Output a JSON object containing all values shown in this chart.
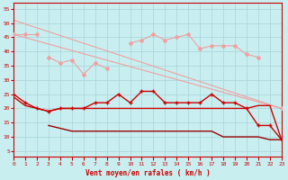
{
  "x": [
    0,
    1,
    2,
    3,
    4,
    5,
    6,
    7,
    8,
    9,
    10,
    11,
    12,
    13,
    14,
    15,
    16,
    17,
    18,
    19,
    20,
    21,
    22,
    23
  ],
  "line_diag1": {
    "x": [
      0,
      23
    ],
    "y": [
      51,
      20
    ]
  },
  "line_diag2": {
    "x": [
      0,
      23
    ],
    "y": [
      46,
      20
    ]
  },
  "line_upper": [
    null,
    null,
    null,
    null,
    null,
    null,
    null,
    null,
    null,
    null,
    43,
    44,
    46,
    44,
    45,
    46,
    41,
    42,
    42,
    42,
    39,
    38,
    null,
    20
  ],
  "line_upper_left": [
    46,
    46,
    46,
    null,
    null,
    null,
    null,
    null,
    null,
    null,
    null,
    null,
    null,
    null,
    null,
    null,
    null,
    null,
    null,
    null,
    null,
    null,
    null,
    null
  ],
  "line_zigzag": [
    null,
    null,
    null,
    38,
    36,
    37,
    32,
    36,
    34,
    null,
    null,
    null,
    null,
    null,
    null,
    null,
    null,
    null,
    null,
    null,
    null,
    null,
    null,
    null
  ],
  "line_red1": [
    25,
    22,
    20,
    19,
    20,
    20,
    20,
    22,
    22,
    25,
    22,
    26,
    26,
    22,
    22,
    22,
    22,
    25,
    22,
    22,
    20,
    14,
    14,
    9
  ],
  "line_red2": [
    24,
    21,
    20,
    19,
    20,
    20,
    20,
    20,
    20,
    20,
    20,
    20,
    20,
    20,
    20,
    20,
    20,
    20,
    20,
    20,
    20,
    21,
    21,
    9
  ],
  "line_dark": [
    null,
    null,
    null,
    14,
    13,
    12,
    12,
    12,
    12,
    12,
    12,
    12,
    12,
    12,
    12,
    12,
    12,
    12,
    10,
    10,
    10,
    10,
    9,
    9
  ],
  "bg_color": "#c8eef0",
  "grid_color": "#a8d4d8",
  "pink_color": "#f0a0a0",
  "red_color": "#cc0000",
  "dark_red_color": "#990000",
  "xlabel": "Vent moyen/en rafales ( km/h )",
  "yticks": [
    5,
    10,
    15,
    20,
    25,
    30,
    35,
    40,
    45,
    50,
    55
  ],
  "xlim": [
    0,
    23
  ],
  "ylim": [
    3,
    57
  ]
}
